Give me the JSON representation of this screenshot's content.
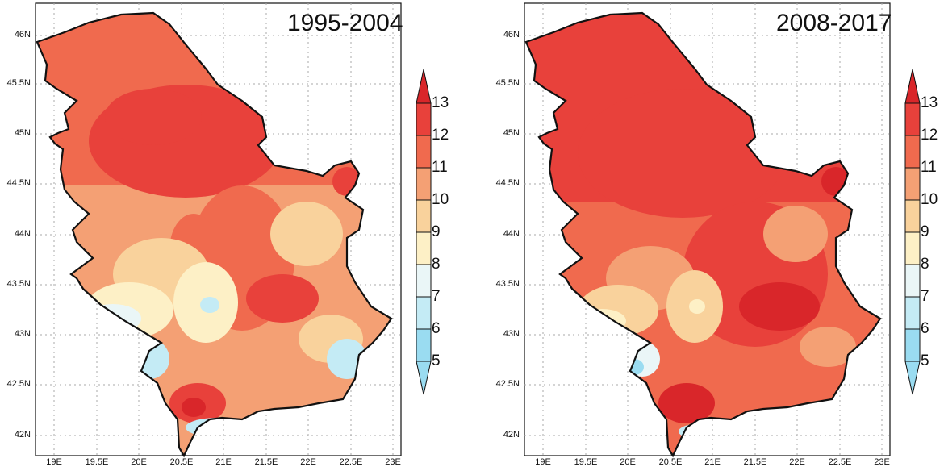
{
  "maps": [
    {
      "period": "1995-2004",
      "latitudes": [
        "46N",
        "45.5N",
        "45N",
        "44.5N",
        "44N",
        "43.5N",
        "43N",
        "42.5N",
        "42N"
      ],
      "longitudes": [
        "19E",
        "19.5E",
        "20E",
        "20.5E",
        "21E",
        "21.5E",
        "22E",
        "22.5E",
        "23E"
      ],
      "colorbar": [
        "13",
        "12",
        "11",
        "10",
        "9",
        "8",
        "7",
        "6",
        "5"
      ]
    },
    {
      "period": "2008-2017",
      "latitudes": [
        "46N",
        "45.5N",
        "45N",
        "44.5N",
        "44N",
        "43.5N",
        "43N",
        "42.5N",
        "42N"
      ],
      "longitudes": [
        "19E",
        "19.5E",
        "20E",
        "20.5E",
        "21E",
        "21.5E",
        "22E",
        "22.5E",
        "23E"
      ],
      "colorbar": [
        "13",
        "12",
        "11",
        "10",
        "9",
        "8",
        "7",
        "6",
        "5"
      ]
    }
  ],
  "colors": {
    "c13": "#d9262a",
    "c12": "#e8413b",
    "c11": "#f06a4e",
    "c10": "#f4a074",
    "c9": "#f9d29c",
    "c8": "#fdf0c6",
    "c7": "#eaf6f7",
    "c6": "#c4ebf5",
    "c5": "#9adcf1"
  }
}
